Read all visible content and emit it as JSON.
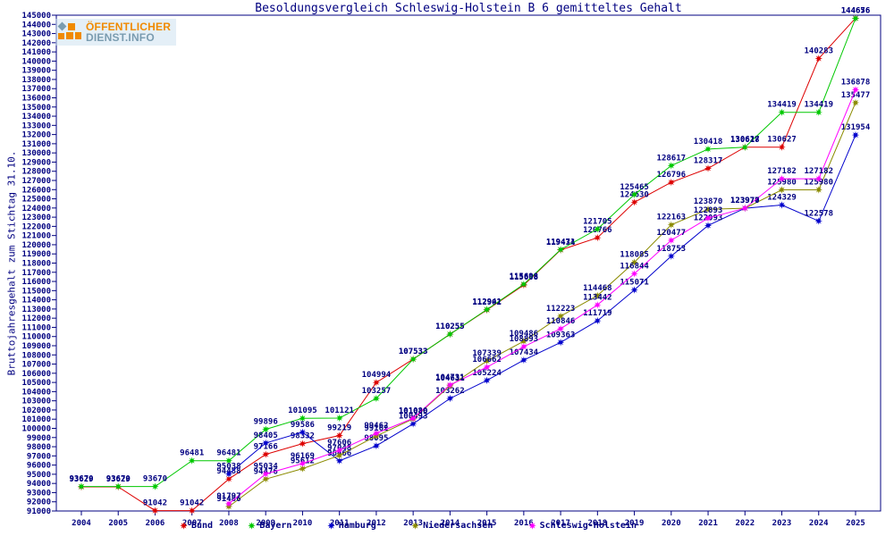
{
  "logo": {
    "line1": "ÖFFENTLICHER",
    "line2": "DIENST.INFO",
    "orange_color": "#F08A00",
    "bluegray_color": "#7A9CB0"
  },
  "chart_data": {
    "type": "line",
    "title": "Besoldungsvergleich Schleswig-Holstein B 6 gemitteltes Gehalt",
    "ylabel": "Bruttojahresgehalt zum Stichtag 31.10.",
    "xlabel": "",
    "years": [
      2004,
      2005,
      2006,
      2007,
      2008,
      2009,
      2010,
      2011,
      2012,
      2013,
      2014,
      2015,
      2016,
      2017,
      2018,
      2019,
      2020,
      2021,
      2022,
      2023,
      2024,
      2025
    ],
    "ylim": [
      91000,
      145000
    ],
    "ytick_step": 1000,
    "grid": false,
    "legend_position": "bottom",
    "axis_color": "#000080",
    "label_color": "#000080",
    "marker": "star",
    "series": [
      {
        "name": "Bund",
        "color": "#DD0000",
        "start_year": 2004,
        "values": [
          93629,
          93629,
          91042,
          91042,
          94488,
          97166,
          98332,
          99219,
          104994,
          107533,
          110255,
          112902,
          115608,
          119434,
          120766,
          124630,
          126796,
          128317,
          130627,
          130627,
          140283,
          144676
        ]
      },
      {
        "name": "Bayern",
        "color": "#00C800",
        "start_year": 2004,
        "values": [
          93670,
          93670,
          93670,
          96481,
          96481,
          99896,
          101095,
          101121,
          103257,
          107533,
          110255,
          112941,
          115698,
          119471,
          121705,
          125465,
          128617,
          130418,
          130618,
          134419,
          134419,
          144656
        ]
      },
      {
        "name": "Hamburg",
        "color": "#0000CC",
        "start_year": 2008,
        "values": [
          95038,
          98405,
          99586,
          96466,
          98095,
          100493,
          103262,
          105224,
          107434,
          109363,
          111719,
          115071,
          118753,
          122093,
          123976,
          124329,
          122578,
          131954
        ]
      },
      {
        "name": "Niedersachsen",
        "color": "#8B8B00",
        "start_year": 2008,
        "values": [
          91486,
          94476,
          95612,
          97048,
          99162,
          101020,
          104631,
          107339,
          109486,
          112223,
          114468,
          118085,
          122163,
          123870,
          123970,
          125980,
          125980,
          135477
        ]
      },
      {
        "name": "Schleswig-Holstein",
        "color": "#FF00FF",
        "start_year": 2008,
        "values": [
          91797,
          95034,
          96169,
          97606,
          99462,
          101080,
          104731,
          106662,
          108893,
          110846,
          113442,
          116844,
          120477,
          122893,
          123977,
          127182,
          127182,
          136878
        ]
      }
    ]
  }
}
